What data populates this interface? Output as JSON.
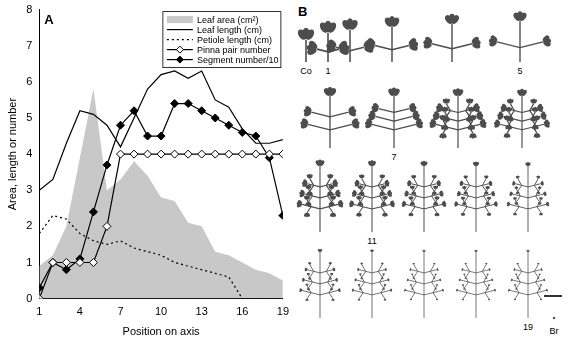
{
  "chart_data": {
    "type": "line",
    "panel_label": "A",
    "x": [
      1,
      2,
      3,
      4,
      5,
      6,
      7,
      8,
      9,
      10,
      11,
      12,
      13,
      14,
      15,
      16,
      17,
      18,
      19
    ],
    "xlim": [
      1,
      19
    ],
    "xticks": [
      1,
      4,
      7,
      10,
      13,
      16,
      19
    ],
    "ylim": [
      0,
      8
    ],
    "yticks": [
      0,
      1,
      2,
      3,
      4,
      5,
      6,
      7,
      8
    ],
    "x_label": "Position on axis",
    "y_label": "Area, length or number",
    "grid": false,
    "legend": "top-right",
    "series": [
      {
        "name": "Leaf area (cm²)",
        "type": "area",
        "color": "#c8c8c8",
        "values": [
          0.9,
          1.2,
          2.0,
          3.9,
          5.8,
          3.0,
          3.3,
          3.8,
          3.4,
          2.8,
          2.7,
          2.1,
          2.0,
          1.3,
          1.2,
          1.0,
          0.8,
          0.7,
          0.5
        ]
      },
      {
        "name": "Leaf length (cm)",
        "color": "#000000",
        "line_style": "solid",
        "marker": "none",
        "values": [
          3.0,
          3.3,
          4.3,
          5.2,
          5.1,
          4.8,
          4.2,
          5.0,
          5.8,
          6.2,
          6.3,
          6.1,
          6.3,
          5.5,
          5.3,
          4.7,
          4.3,
          4.3,
          4.4
        ]
      },
      {
        "name": "Petiole length (cm)",
        "color": "#000000",
        "line_style": "dotted",
        "marker": "none",
        "values": [
          1.8,
          2.3,
          2.2,
          1.8,
          1.6,
          1.5,
          1.6,
          1.4,
          1.3,
          1.2,
          1.0,
          0.9,
          0.8,
          0.7,
          0.6,
          0,
          0,
          0,
          0
        ]
      },
      {
        "name": "Pinna pair number",
        "color": "#000000",
        "line_style": "solid",
        "marker": "diamond_open",
        "values": [
          0,
          1,
          1,
          1,
          1,
          2,
          4,
          4,
          4,
          4,
          4,
          4,
          4,
          4,
          4,
          4,
          4,
          4,
          4
        ]
      },
      {
        "name": "Segment number/10",
        "color": "#000000",
        "line_style": "solid",
        "marker": "diamond",
        "values": [
          0.3,
          1.0,
          0.8,
          1.1,
          2.4,
          3.7,
          4.8,
          5.2,
          4.5,
          4.5,
          5.4,
          5.4,
          5.2,
          5.0,
          4.8,
          4.6,
          4.5,
          3.9,
          2.3
        ]
      }
    ]
  },
  "panel_b": {
    "panel_label": "B",
    "leaf_labels": [
      "Co",
      "1",
      "5",
      "7",
      "11",
      "19",
      "Br"
    ]
  }
}
